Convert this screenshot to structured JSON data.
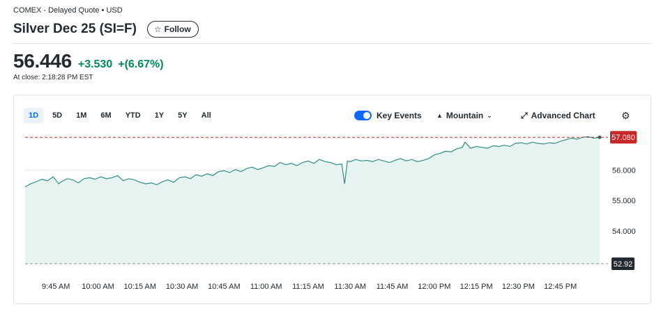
{
  "header": {
    "exchange": "COMEX - Delayed Quote • USD",
    "title": "Silver Dec 25 (SI=F)",
    "follow_label": "Follow"
  },
  "quote": {
    "price": "56.446",
    "change": "+3.530",
    "change_pct": "+(6.67%)",
    "close_time": "At close: 2:18:28 PM EST"
  },
  "toolbar": {
    "ranges": [
      "1D",
      "5D",
      "1M",
      "6M",
      "YTD",
      "1Y",
      "5Y",
      "All"
    ],
    "active_range": "1D",
    "key_events_label": "Key Events",
    "chart_type_label": "Mountain",
    "advanced_chart_label": "Advanced Chart"
  },
  "colors": {
    "line": "#2f8f86",
    "fill": "#e7f3f0",
    "accent": "#0f69ff",
    "positive": "#008a5a",
    "high_badge": "#c62828",
    "prev_close_badge": "#232a31"
  },
  "chart_data": {
    "type": "area",
    "x_ticks": [
      "9:45 AM",
      "10:00 AM",
      "10:15 AM",
      "10:30 AM",
      "10:45 AM",
      "11:00 AM",
      "11:15 AM",
      "11:30 AM",
      "11:45 AM",
      "12:00 PM",
      "12:15 PM",
      "12:30 PM",
      "12:45 PM"
    ],
    "x_tick_minutes": [
      585,
      600,
      615,
      630,
      645,
      660,
      675,
      690,
      705,
      720,
      735,
      750,
      765
    ],
    "x_range_minutes": [
      574,
      779
    ],
    "y_ticks": [
      "56.000",
      "55.000",
      "54.000"
    ],
    "y_tick_values": [
      56.0,
      55.0,
      54.0
    ],
    "ylim": [
      52.92,
      57.2
    ],
    "current_value": 57.08,
    "current_label": "57.080",
    "prev_close": 52.92,
    "prev_close_label": "52.92",
    "grid": true,
    "key_event_minutes": [
      690.5,
      697.5
    ],
    "series": [
      {
        "x": [
          574,
          576,
          578,
          580,
          582,
          584,
          586,
          587,
          589,
          591,
          593,
          595,
          597,
          599,
          601,
          603,
          605,
          607,
          609,
          611,
          613,
          615,
          617,
          619,
          621,
          623,
          625,
          627,
          629,
          631,
          633,
          635,
          637,
          639,
          641,
          643,
          645,
          647,
          649,
          651,
          653,
          655,
          657,
          659,
          661,
          663,
          665,
          667,
          669,
          671,
          673,
          675,
          677,
          679,
          681,
          683,
          685,
          687,
          688,
          689,
          690,
          692,
          694,
          696,
          698,
          700,
          702,
          704,
          706,
          708,
          710,
          712,
          714,
          716,
          718,
          720,
          722,
          724,
          726,
          728,
          730,
          731,
          733,
          735,
          737,
          739,
          741,
          743,
          745,
          747,
          749,
          751,
          753,
          755,
          757,
          759,
          761,
          763,
          765,
          767,
          769,
          771,
          773,
          775,
          777,
          779
        ],
        "y": [
          55.45,
          55.55,
          55.62,
          55.7,
          55.65,
          55.78,
          55.55,
          55.62,
          55.72,
          55.68,
          55.58,
          55.72,
          55.75,
          55.7,
          55.78,
          55.72,
          55.75,
          55.82,
          55.65,
          55.72,
          55.68,
          55.6,
          55.55,
          55.58,
          55.52,
          55.62,
          55.68,
          55.6,
          55.75,
          55.78,
          55.72,
          55.85,
          55.8,
          55.88,
          55.82,
          55.95,
          55.98,
          55.92,
          56.02,
          55.95,
          56.05,
          56.1,
          56.02,
          56.08,
          56.15,
          56.12,
          56.25,
          56.18,
          56.22,
          56.15,
          56.25,
          56.3,
          56.22,
          56.35,
          56.28,
          56.25,
          56.18,
          56.2,
          55.55,
          56.3,
          56.28,
          56.35,
          56.3,
          56.32,
          56.28,
          56.35,
          56.3,
          56.25,
          56.32,
          56.38,
          56.3,
          56.35,
          56.28,
          56.32,
          56.38,
          56.5,
          56.55,
          56.62,
          56.6,
          56.7,
          56.75,
          56.92,
          56.72,
          56.78,
          56.75,
          56.72,
          56.8,
          56.78,
          56.82,
          56.78,
          56.88,
          56.9,
          56.86,
          56.92,
          56.88,
          56.86,
          56.9,
          56.88,
          56.95,
          57.0,
          57.05,
          57.02,
          57.08,
          57.1,
          57.05,
          57.08
        ]
      }
    ]
  }
}
